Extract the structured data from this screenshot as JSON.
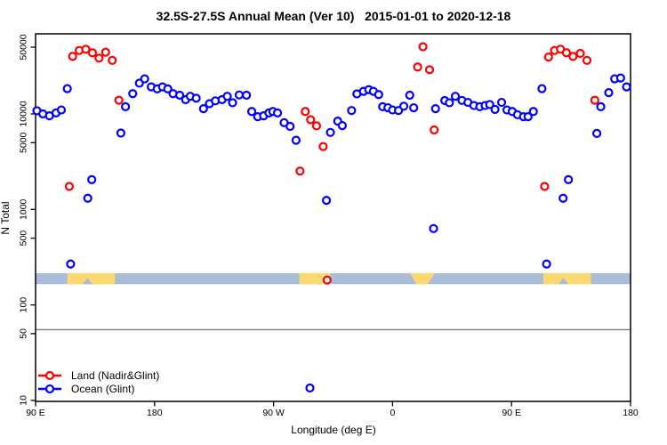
{
  "title": "32.5S-27.5S Annual Mean (Ver 10)   2015-01-01 to 2020-12-18",
  "axes": {
    "x": {
      "label": "Longitude (deg E)",
      "ticks": [
        {
          "lon": 90,
          "label": "90 E"
        },
        {
          "lon": 180,
          "label": "180"
        },
        {
          "lon": 270,
          "label": "90 W"
        },
        {
          "lon": 360,
          "label": "0"
        },
        {
          "lon": 450,
          "label": "90 E"
        },
        {
          "lon": 540,
          "label": "180"
        }
      ]
    },
    "y": {
      "label": "N Total",
      "scale": "log",
      "ticks": [
        {
          "n": 50000,
          "label": "50000"
        },
        {
          "n": 10000,
          "label": "10000"
        },
        {
          "n": 5000,
          "label": "5000"
        },
        {
          "n": 1000,
          "label": "1000"
        },
        {
          "n": 500,
          "label": "500"
        },
        {
          "n": 100,
          "label": "100"
        },
        {
          "n": 50,
          "label": "50"
        },
        {
          "n": 10,
          "label": "10"
        }
      ]
    }
  },
  "legend": [
    {
      "label": "Land (Nadir&Glint)",
      "color": "#ff0000"
    },
    {
      "label": "Ocean (Glint)",
      "color": "#0000ff"
    }
  ],
  "colors": {
    "land": "#ff0000",
    "ocean": "#0000ff",
    "band_ocean": "#a9bdd9",
    "band_land": "#fbd870",
    "reference_line": "#7f7f7f",
    "axis": "#000000"
  },
  "chart_data": {
    "type": "scatter",
    "title": "32.5S-27.5S Annual Mean (Ver 10)   2015-01-01 to 2020-12-18",
    "xlabel": "Longitude (deg E)",
    "ylabel": "N Total",
    "x_range": [
      90,
      540
    ],
    "y_range_log": [
      10,
      72000
    ],
    "grid": false,
    "legend_position": "bottom-left",
    "reference_line": {
      "n": 55,
      "color": "#7f7f7f"
    },
    "band": {
      "n_range": [
        165,
        215
      ],
      "fill": "#a9bdd9",
      "land_patches": [
        {
          "lon": [
            114,
            150
          ],
          "fill": "#fbd870",
          "notch": [
            125.5,
            133
          ]
        },
        {
          "lon": [
            289.5,
            313
          ],
          "fill": "#fbd870",
          "slant_right": 310.5
        },
        {
          "lon": [
            373,
            392
          ],
          "fill": "#fbd870",
          "taper": [
            378.5,
            386.5
          ]
        },
        {
          "lon": [
            474,
            510
          ],
          "fill": "#fbd870",
          "notch": [
            485.5,
            493
          ]
        }
      ]
    },
    "series": [
      {
        "name": "Land (Nadir&Glint)",
        "color": "#ff0000",
        "points": [
          [
            115.5,
            1740
          ],
          [
            118,
            40000
          ],
          [
            123,
            46200
          ],
          [
            128,
            47600
          ],
          [
            133,
            43700
          ],
          [
            138,
            38400
          ],
          [
            143,
            44300
          ],
          [
            148,
            36400
          ],
          [
            153,
            13900
          ],
          [
            290,
            2520
          ],
          [
            294,
            10600
          ],
          [
            298,
            8700
          ],
          [
            302.5,
            7500
          ],
          [
            307.5,
            4550
          ],
          [
            310.5,
            182
          ],
          [
            379,
            31000
          ],
          [
            383,
            50500
          ],
          [
            388,
            29000
          ],
          [
            391.5,
            6800
          ],
          [
            475,
            1740
          ],
          [
            478,
            39400
          ],
          [
            482.5,
            46200
          ],
          [
            487,
            47600
          ],
          [
            491.5,
            43700
          ],
          [
            496.5,
            40000
          ],
          [
            502,
            43000
          ],
          [
            507,
            36400
          ],
          [
            513,
            13900
          ]
        ]
      },
      {
        "name": "Ocean (Glint)",
        "color": "#0000ff",
        "points": [
          [
            91,
            10800
          ],
          [
            95.5,
            10000
          ],
          [
            100.5,
            9550
          ],
          [
            105.5,
            10250
          ],
          [
            109.5,
            11000
          ],
          [
            114,
            18400
          ],
          [
            116.5,
            268
          ],
          [
            129.5,
            1310
          ],
          [
            132.5,
            2050
          ],
          [
            154.5,
            6300
          ],
          [
            158,
            11900
          ],
          [
            163.5,
            16300
          ],
          [
            168.5,
            21000
          ],
          [
            172.5,
            23300
          ],
          [
            177.5,
            19200
          ],
          [
            182,
            18300
          ],
          [
            186,
            19200
          ],
          [
            190,
            18300
          ],
          [
            194,
            16300
          ],
          [
            199,
            15700
          ],
          [
            203.5,
            14100
          ],
          [
            207,
            15300
          ],
          [
            211.5,
            14600
          ],
          [
            217,
            11350
          ],
          [
            221.5,
            12800
          ],
          [
            226,
            13700
          ],
          [
            231,
            14100
          ],
          [
            235,
            15300
          ],
          [
            239,
            13100
          ],
          [
            244,
            15800
          ],
          [
            249.5,
            15700
          ],
          [
            253.5,
            10600
          ],
          [
            258,
            9350
          ],
          [
            262.5,
            9550
          ],
          [
            266.5,
            10250
          ],
          [
            269.5,
            10600
          ],
          [
            273,
            10250
          ],
          [
            278,
            8100
          ],
          [
            282.5,
            7400
          ],
          [
            287,
            5300
          ],
          [
            297.5,
            13.5
          ],
          [
            310,
            1245
          ],
          [
            313,
            6400
          ],
          [
            318.5,
            8400
          ],
          [
            322,
            7550
          ],
          [
            329,
            10850
          ],
          [
            333,
            16200
          ],
          [
            338,
            17250
          ],
          [
            342,
            17950
          ],
          [
            345.5,
            17250
          ],
          [
            349.5,
            15950
          ],
          [
            352.5,
            11900
          ],
          [
            356.5,
            11600
          ],
          [
            360,
            11000
          ],
          [
            364.5,
            10850
          ],
          [
            368.5,
            12050
          ],
          [
            373,
            15700
          ],
          [
            376,
            11600
          ],
          [
            391,
            630
          ],
          [
            392.5,
            11350
          ],
          [
            399.5,
            13800
          ],
          [
            403,
            13100
          ],
          [
            407.5,
            15300
          ],
          [
            412.5,
            13850
          ],
          [
            417,
            13200
          ],
          [
            421.5,
            12250
          ],
          [
            426,
            11900
          ],
          [
            430,
            12250
          ],
          [
            433.5,
            12550
          ],
          [
            437.5,
            11150
          ],
          [
            442.5,
            13200
          ],
          [
            446.5,
            11000
          ],
          [
            450.5,
            10600
          ],
          [
            454.5,
            9800
          ],
          [
            459,
            9350
          ],
          [
            462.5,
            9350
          ],
          [
            466.5,
            10600
          ],
          [
            473,
            18400
          ],
          [
            476.5,
            268
          ],
          [
            489,
            1310
          ],
          [
            493,
            2050
          ],
          [
            514.5,
            6250
          ],
          [
            517.5,
            11900
          ],
          [
            523.5,
            16700
          ],
          [
            528,
            23300
          ],
          [
            532.5,
            23800
          ],
          [
            537,
            19200
          ]
        ]
      }
    ]
  }
}
